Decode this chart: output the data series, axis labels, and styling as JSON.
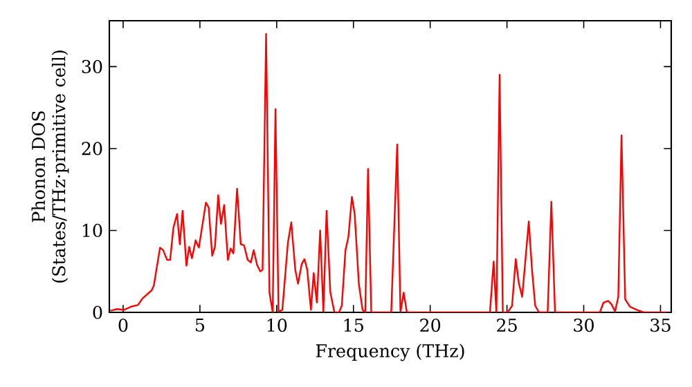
{
  "chart_data": {
    "type": "line",
    "xlabel": "Frequency (THz)",
    "ylabel": "Phonon DOS (States/THz·primitive cell)",
    "xlim": [
      -0.9,
      35.7
    ],
    "ylim": [
      0,
      35.6
    ],
    "xticks": [
      0,
      5,
      10,
      15,
      20,
      25,
      30,
      35
    ],
    "yticks": [
      0,
      10,
      20,
      30
    ],
    "marker": "none",
    "line_style": "solid",
    "series": [
      {
        "color": "#ff0000",
        "x": [
          -0.84,
          -0.39,
          0.06,
          0.51,
          0.96,
          1.26,
          1.86,
          2.0,
          2.4,
          2.6,
          2.86,
          3.06,
          3.27,
          3.51,
          3.69,
          3.87,
          4.12,
          4.3,
          4.48,
          4.72,
          4.93,
          5.39,
          5.57,
          5.8,
          5.98,
          6.19,
          6.37,
          6.58,
          6.82,
          7.0,
          7.18,
          7.42,
          7.66,
          7.87,
          8.11,
          8.32,
          8.5,
          8.72,
          8.93,
          9.08,
          9.31,
          9.53,
          9.74,
          9.92,
          10.12,
          10.37,
          10.73,
          10.95,
          11.21,
          11.39,
          11.63,
          11.81,
          11.99,
          12.23,
          12.41,
          12.62,
          12.83,
          13.04,
          13.25,
          13.49,
          13.76,
          14.06,
          14.24,
          14.48,
          14.67,
          14.9,
          15.08,
          15.35,
          15.59,
          15.77,
          15.95,
          16.16,
          17.46,
          17.85,
          18.06,
          18.27,
          18.48,
          23.89,
          24.13,
          24.31,
          24.52,
          24.73,
          25.04,
          25.33,
          25.57,
          25.78,
          25.99,
          26.42,
          26.63,
          26.84,
          27.09,
          27.65,
          27.89,
          28.13,
          31.05,
          31.29,
          31.59,
          31.8,
          32.04,
          32.25,
          32.46,
          32.7,
          33.0,
          33.45,
          33.9,
          35.4
        ],
        "values": [
          0.2,
          0.4,
          0.3,
          0.7,
          0.9,
          1.7,
          2.7,
          3.3,
          7.9,
          7.6,
          6.4,
          6.4,
          10.3,
          12.0,
          8.3,
          12.4,
          5.7,
          8.0,
          6.6,
          8.8,
          7.9,
          13.4,
          12.8,
          6.9,
          8.0,
          14.3,
          10.8,
          13.1,
          6.4,
          7.8,
          7.2,
          15.1,
          8.3,
          8.2,
          6.4,
          6.1,
          7.6,
          5.8,
          5.0,
          5.2,
          34.0,
          2.4,
          0,
          24.8,
          0.1,
          0.3,
          8.5,
          11.0,
          5.2,
          3.5,
          5.9,
          6.5,
          5.2,
          0.3,
          4.8,
          1.2,
          10.0,
          0.1,
          12.4,
          2.5,
          0,
          0,
          0.8,
          7.6,
          9.2,
          14.1,
          12.0,
          3.5,
          0.3,
          0,
          17.5,
          0,
          0,
          20.5,
          0,
          2.4,
          0,
          0,
          6.2,
          0,
          29.0,
          0,
          0,
          0.8,
          6.5,
          3.5,
          1.9,
          11.1,
          5.2,
          0.8,
          0,
          0,
          13.5,
          0,
          0,
          1.2,
          1.4,
          1.0,
          0.1,
          1.9,
          21.6,
          1.6,
          0.7,
          0.3,
          0,
          0
        ]
      }
    ]
  }
}
